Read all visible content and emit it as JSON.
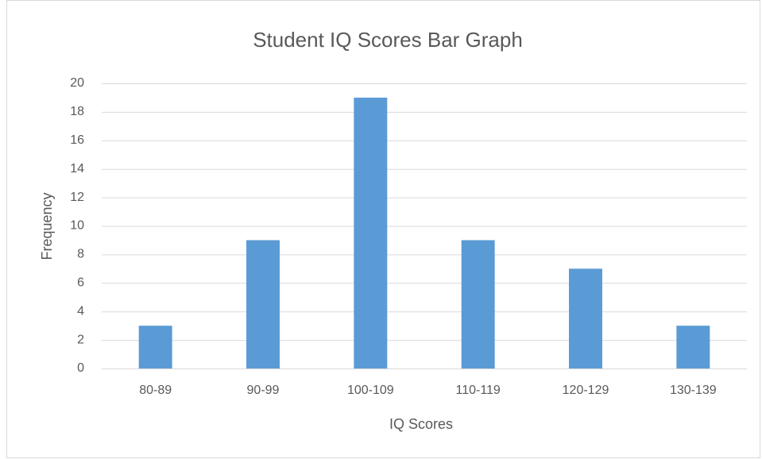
{
  "chart_data": {
    "type": "bar",
    "title": "Student IQ Scores Bar Graph",
    "x_label": "IQ Scores",
    "y_label": "Frequency",
    "categories": [
      "80-89",
      "90-99",
      "100-109",
      "110-119",
      "120-129",
      "130-139"
    ],
    "values": [
      3,
      9,
      19,
      9,
      7,
      3
    ],
    "color": "#5b9bd5",
    "ylim": [
      0,
      20
    ],
    "yticks": [
      0,
      2,
      4,
      6,
      8,
      10,
      12,
      14,
      16,
      18,
      20
    ],
    "grid": true
  }
}
